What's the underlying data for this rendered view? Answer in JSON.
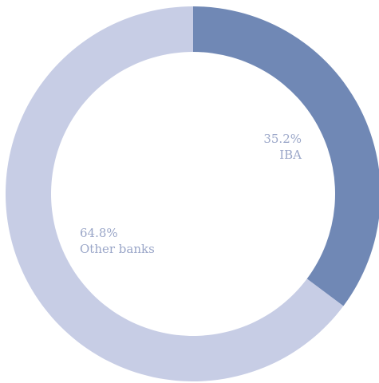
{
  "chart_data": {
    "type": "pie",
    "categories": [
      "IBA",
      "Other banks"
    ],
    "values": [
      35.2,
      64.8
    ],
    "value_labels": [
      "35.2%",
      "64.8%"
    ],
    "colors": [
      "#7088b5",
      "#c7cde5"
    ],
    "label_color": "#9aa6c8",
    "donut": true,
    "start": "top",
    "direction": "clockwise",
    "legend": "none"
  }
}
